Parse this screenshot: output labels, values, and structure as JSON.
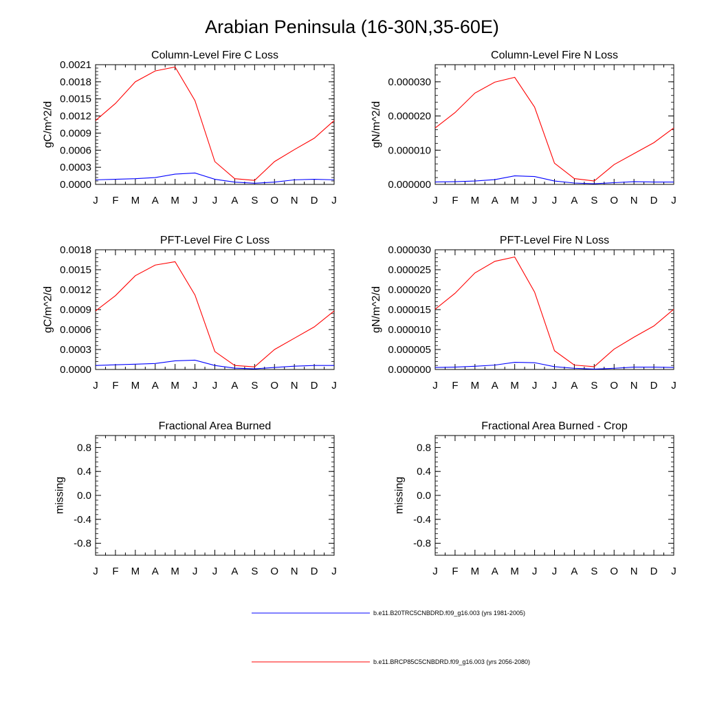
{
  "title": "Arabian Peninsula (16-30N,35-60E)",
  "colors": {
    "series1": "#0000ff",
    "series2": "#ff0000",
    "axis": "#000000"
  },
  "legend": [
    {
      "label": "b.e11.B20TRC5CNBDRD.f09_g16.003 (yrs 1981-2005)",
      "color": "#0000ff"
    },
    {
      "label": "b.e11.BRCP85C5CNBDRD.f09_g16.003 (yrs 2056-2080)",
      "color": "#ff0000"
    }
  ],
  "chart_data": [
    {
      "type": "line",
      "title": "Column-Level Fire C Loss",
      "ylabel": "gC/m^2/d",
      "x": [
        "J",
        "F",
        "M",
        "A",
        "M",
        "J",
        "J",
        "A",
        "S",
        "O",
        "N",
        "D",
        "J"
      ],
      "ylim": [
        0,
        0.0021
      ],
      "yticks": [
        0,
        0.0003,
        0.0006,
        0.0009,
        0.0012,
        0.0015,
        0.0018,
        0.0021
      ],
      "ytick_labels": [
        "0.0000",
        "0.0003",
        "0.0006",
        "0.0009",
        "0.0012",
        "0.0015",
        "0.0018",
        "0.0021"
      ],
      "series": [
        {
          "values": [
            8e-05,
            9e-05,
            0.0001,
            0.00012,
            0.00018,
            0.0002,
            9e-05,
            4e-05,
            2e-05,
            4e-05,
            8e-05,
            9e-05,
            8e-05
          ]
        },
        {
          "values": [
            0.00112,
            0.00142,
            0.0018,
            0.00199,
            0.00206,
            0.00147,
            0.0004,
            0.0001,
            7e-05,
            0.0004,
            0.00061,
            0.00081,
            0.00112
          ]
        }
      ]
    },
    {
      "type": "line",
      "title": "Column-Level Fire N Loss",
      "ylabel": "gN/m^2/d",
      "x": [
        "J",
        "F",
        "M",
        "A",
        "M",
        "J",
        "J",
        "A",
        "S",
        "O",
        "N",
        "D",
        "J"
      ],
      "ylim": [
        0,
        3.5e-05
      ],
      "yticks": [
        0,
        1e-05,
        2e-05,
        3e-05
      ],
      "ytick_labels": [
        "0.000000",
        "0.000010",
        "0.000020",
        "0.000030"
      ],
      "series": [
        {
          "values": [
            7e-07,
            8e-07,
            1e-06,
            1.4e-06,
            2.5e-06,
            2.3e-06,
            1e-06,
            4e-07,
            2e-07,
            5e-07,
            8e-07,
            7e-07,
            7e-07
          ]
        },
        {
          "values": [
            1.65e-05,
            2.1e-05,
            2.67e-05,
            2.99e-05,
            3.13e-05,
            2.26e-05,
            6.2e-06,
            1.7e-06,
            1e-06,
            5.8e-06,
            9e-06,
            1.22e-05,
            1.65e-05
          ]
        }
      ]
    },
    {
      "type": "line",
      "title": "PFT-Level Fire C Loss",
      "ylabel": "gC/m^2/d",
      "x": [
        "J",
        "F",
        "M",
        "A",
        "M",
        "J",
        "J",
        "A",
        "S",
        "O",
        "N",
        "D",
        "J"
      ],
      "ylim": [
        0,
        0.0018
      ],
      "yticks": [
        0,
        0.0003,
        0.0006,
        0.0009,
        0.0012,
        0.0015,
        0.0018
      ],
      "ytick_labels": [
        "0.0000",
        "0.0003",
        "0.0006",
        "0.0009",
        "0.0012",
        "0.0015",
        "0.0018"
      ],
      "series": [
        {
          "values": [
            6e-05,
            7e-05,
            8e-05,
            9e-05,
            0.00013,
            0.00014,
            6e-05,
            2e-05,
            1e-05,
            3e-05,
            5e-05,
            6e-05,
            6e-05
          ]
        },
        {
          "values": [
            0.00088,
            0.00111,
            0.00141,
            0.00157,
            0.00162,
            0.00112,
            0.00027,
            6e-05,
            4e-05,
            0.0003,
            0.00047,
            0.00064,
            0.00088
          ]
        }
      ]
    },
    {
      "type": "line",
      "title": "PFT-Level Fire N Loss",
      "ylabel": "gN/m^2/d",
      "x": [
        "J",
        "F",
        "M",
        "A",
        "M",
        "J",
        "J",
        "A",
        "S",
        "O",
        "N",
        "D",
        "J"
      ],
      "ylim": [
        0,
        3e-05
      ],
      "yticks": [
        0,
        5e-06,
        1e-05,
        1.5e-05,
        2e-05,
        2.5e-05,
        3e-05
      ],
      "ytick_labels": [
        "0.000000",
        "0.000005",
        "0.000010",
        "0.000015",
        "0.000020",
        "0.000025",
        "0.000030"
      ],
      "series": [
        {
          "values": [
            5e-07,
            6e-07,
            8e-07,
            1.1e-06,
            1.8e-06,
            1.7e-06,
            7e-07,
            3e-07,
            1e-07,
            3e-07,
            6e-07,
            6e-07,
            5e-07
          ]
        },
        {
          "values": [
            1.51e-05,
            1.91e-05,
            2.42e-05,
            2.71e-05,
            2.82e-05,
            1.94e-05,
            4.7e-06,
            1.1e-06,
            7e-07,
            5.1e-06,
            8.1e-06,
            1.09e-05,
            1.51e-05
          ]
        }
      ]
    },
    {
      "type": "line",
      "title": "Fractional Area Burned",
      "ylabel": "missing",
      "x": [
        "J",
        "F",
        "M",
        "A",
        "M",
        "J",
        "J",
        "A",
        "S",
        "O",
        "N",
        "D",
        "J"
      ],
      "ylim": [
        -1,
        1
      ],
      "yticks": [
        -0.8,
        -0.4,
        0,
        0.4,
        0.8
      ],
      "ytick_labels": [
        "-0.8",
        "-0.4",
        "0.0",
        "0.4",
        "0.8"
      ],
      "series": []
    },
    {
      "type": "line",
      "title": "Fractional Area Burned - Crop",
      "ylabel": "missing",
      "x": [
        "J",
        "F",
        "M",
        "A",
        "M",
        "J",
        "J",
        "A",
        "S",
        "O",
        "N",
        "D",
        "J"
      ],
      "ylim": [
        -1,
        1
      ],
      "yticks": [
        -0.8,
        -0.4,
        0,
        0.4,
        0.8
      ],
      "ytick_labels": [
        "-0.8",
        "-0.4",
        "0.0",
        "0.4",
        "0.8"
      ],
      "series": []
    }
  ]
}
